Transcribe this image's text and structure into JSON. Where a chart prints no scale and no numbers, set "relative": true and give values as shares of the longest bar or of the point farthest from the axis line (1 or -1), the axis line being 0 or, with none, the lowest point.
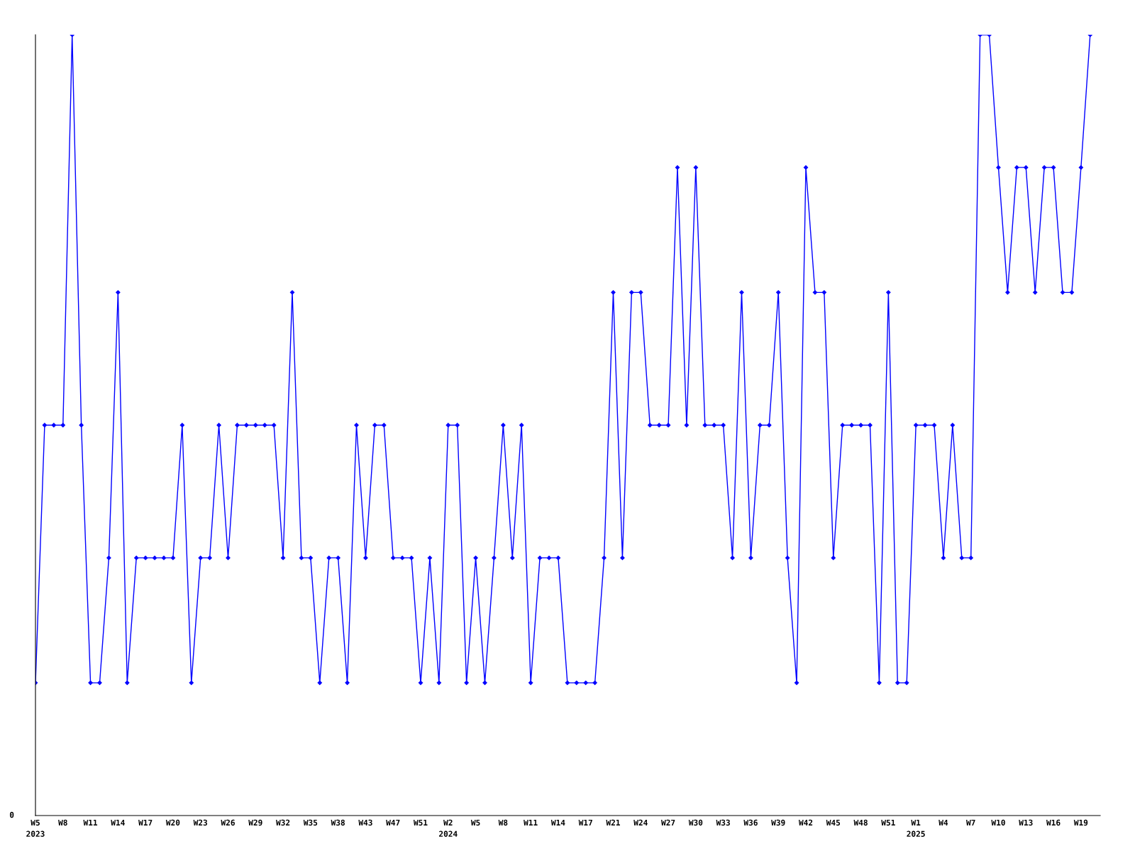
{
  "chart_data": {
    "type": "line",
    "relative": true,
    "color": "#0000ff",
    "marker": "diamond",
    "grid": false,
    "legend": false,
    "annotations": [
      "0"
    ],
    "categories": [
      "W5\n2023",
      null,
      null,
      "W8",
      null,
      null,
      "W11",
      null,
      null,
      "W14",
      null,
      null,
      "W17",
      null,
      null,
      "W20",
      null,
      null,
      "W23",
      null,
      null,
      "W26",
      null,
      null,
      "W29",
      null,
      null,
      "W32",
      null,
      null,
      "W35",
      null,
      null,
      "W38",
      null,
      null,
      "W43",
      null,
      null,
      "W47",
      null,
      null,
      "W51",
      null,
      null,
      "W2\n2024",
      null,
      null,
      "W5",
      null,
      null,
      "W8",
      null,
      null,
      "W11",
      null,
      null,
      "W14",
      null,
      null,
      "W17",
      null,
      null,
      "W21",
      null,
      null,
      "W24",
      null,
      null,
      "W27",
      null,
      null,
      "W30",
      null,
      null,
      "W33",
      null,
      null,
      "W36",
      null,
      null,
      "W39",
      null,
      null,
      "W42",
      null,
      null,
      "W45",
      null,
      null,
      "W48",
      null,
      null,
      "W51",
      null,
      null,
      "W1\n2025",
      null,
      null,
      "W4",
      null,
      null,
      "W7",
      null,
      null,
      "W10",
      null,
      null,
      "W13",
      null,
      null,
      "W16",
      null,
      null,
      "W19",
      null
    ],
    "values": [
      0.17,
      0.5,
      0.5,
      0.5,
      1,
      0.5,
      0.17,
      0.17,
      0.33,
      0.67,
      0.17,
      0.33,
      0.33,
      0.33,
      0.33,
      0.33,
      0.5,
      0.17,
      0.33,
      0.33,
      0.5,
      0.33,
      0.5,
      0.5,
      0.5,
      0.5,
      0.5,
      0.33,
      0.67,
      0.33,
      0.33,
      0.17,
      0.33,
      0.33,
      0.17,
      0.5,
      0.33,
      0.5,
      0.5,
      0.33,
      0.33,
      0.33,
      0.17,
      0.33,
      0.17,
      0.5,
      0.5,
      0.17,
      0.33,
      0.17,
      0.33,
      0.5,
      0.33,
      0.5,
      0.17,
      0.33,
      0.33,
      0.33,
      0.17,
      0.17,
      0.17,
      0.17,
      0.33,
      0.67,
      0.33,
      0.67,
      0.67,
      0.5,
      0.5,
      0.5,
      0.83,
      0.5,
      0.83,
      0.5,
      0.5,
      0.5,
      0.33,
      0.67,
      0.33,
      0.5,
      0.5,
      0.67,
      0.33,
      0.17,
      0.83,
      0.67,
      0.67,
      0.33,
      0.5,
      0.5,
      0.5,
      0.5,
      0.17,
      0.67,
      0.17,
      0.17,
      0.5,
      0.5,
      0.5,
      0.33,
      0.5,
      0.33,
      0.33,
      1,
      1,
      0.83,
      0.67,
      0.83,
      0.83,
      0.67,
      0.83,
      0.83,
      0.67,
      0.67,
      0.83,
      1
    ]
  }
}
